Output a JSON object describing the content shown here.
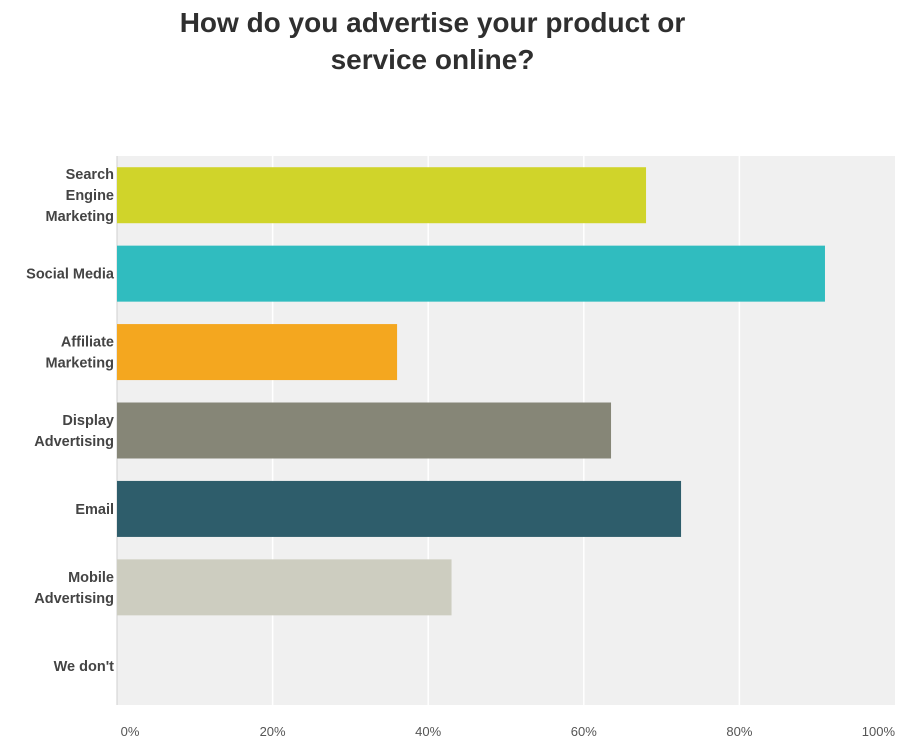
{
  "chart_data": {
    "type": "bar",
    "orientation": "horizontal",
    "title": "How do you advertise your product or\nservice online?",
    "categories": [
      "Search Engine Marketing",
      "Social Media",
      "Affiliate Marketing",
      "Display Advertising",
      "Email",
      "Mobile Advertising",
      "We don't"
    ],
    "category_label_lines": [
      [
        "Search",
        "Engine",
        "Marketing"
      ],
      [
        "Social Media"
      ],
      [
        "Affiliate",
        "Marketing"
      ],
      [
        "Display",
        "Advertising"
      ],
      [
        "Email"
      ],
      [
        "Mobile",
        "Advertising"
      ],
      [
        "We don't"
      ]
    ],
    "values": [
      68,
      91,
      36,
      63.5,
      72.5,
      43,
      0
    ],
    "bar_colors": [
      "#d0d42a",
      "#30bcbf",
      "#f4a71f",
      "#868677",
      "#2e5d6b",
      "#cdcdc0",
      "#cccccc"
    ],
    "xlim": [
      0,
      100
    ],
    "x_ticks": [
      0,
      20,
      40,
      60,
      80,
      100
    ],
    "x_tick_labels": [
      "0%",
      "20%",
      "40%",
      "60%",
      "80%",
      "100%"
    ],
    "xlabel": "",
    "ylabel": "",
    "grid": true,
    "legend": "none",
    "plot_background": "#f0f0f0",
    "grid_color": "#ffffff"
  }
}
